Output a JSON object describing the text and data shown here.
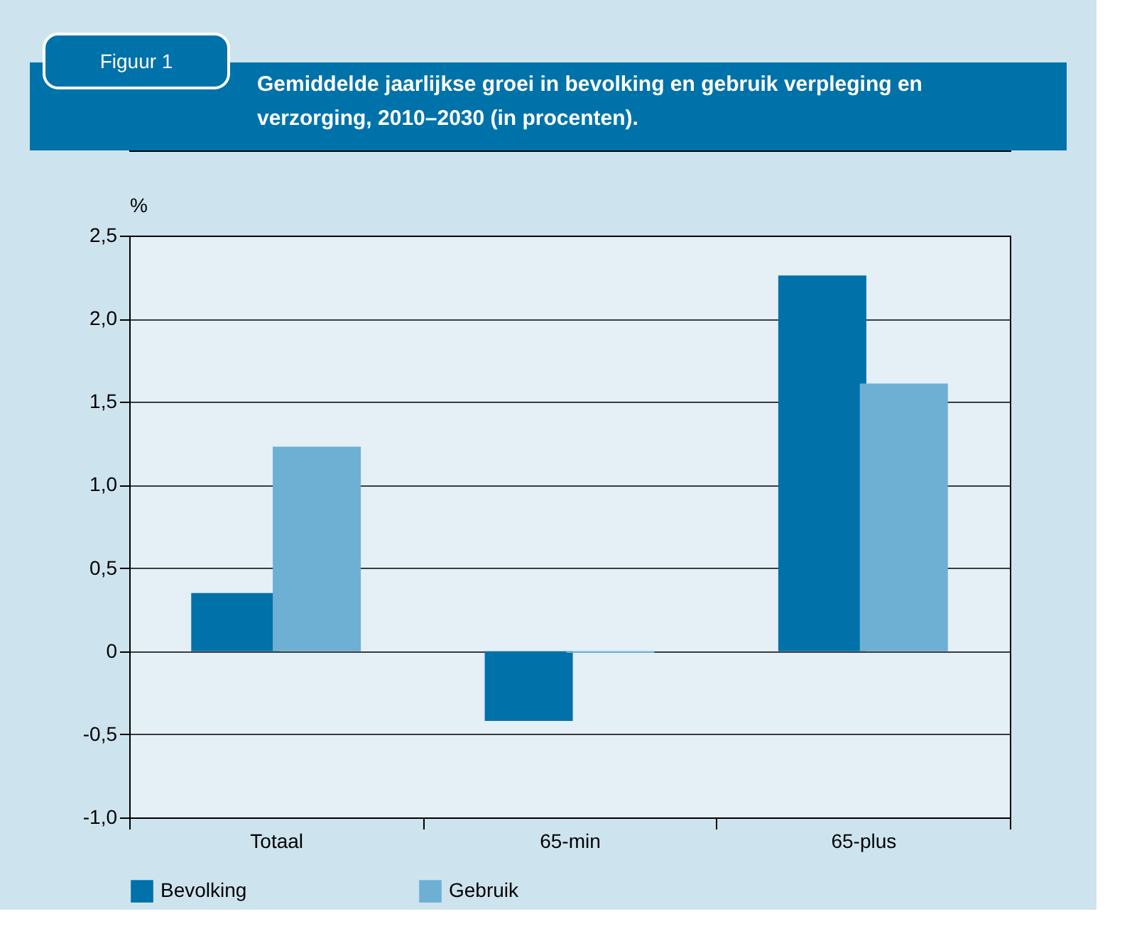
{
  "chart_data": {
    "type": "bar",
    "title": "Gemiddelde jaarlijkse groei in bevolking en gebruik verpleging en verzorging, 2010–2030 (in procenten).",
    "annotations": [
      "Figuur 1"
    ],
    "ylabel": "%",
    "categories": [
      "Totaal",
      "65-min",
      "65-plus"
    ],
    "series": [
      {
        "name": "Bevolking",
        "color": "#0071a9",
        "values": [
          0.35,
          -0.42,
          2.26
        ]
      },
      {
        "name": "Gebruik",
        "color": "#6eb0d3",
        "values": [
          1.23,
          -0.01,
          1.61
        ]
      }
    ],
    "ylim": [
      -1.0,
      2.5
    ],
    "yticks": [
      {
        "value": -1.0,
        "label": "-1,0"
      },
      {
        "value": -0.5,
        "label": "-0,5"
      },
      {
        "value": 0,
        "label": "0"
      },
      {
        "value": 0.5,
        "label": "0,5"
      },
      {
        "value": 1.0,
        "label": "1,0"
      },
      {
        "value": 1.5,
        "label": "1,5"
      },
      {
        "value": 2.0,
        "label": "2,0"
      },
      {
        "value": 2.5,
        "label": "2,5"
      }
    ],
    "grid": "y",
    "legend": "bottom"
  }
}
